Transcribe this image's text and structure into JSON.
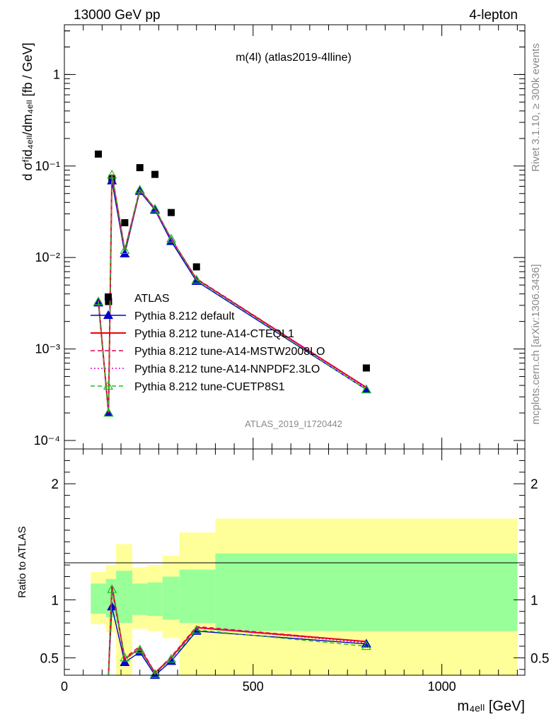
{
  "header": {
    "left": "13000 GeV pp",
    "right": "4-lepton"
  },
  "side_labels": {
    "rivet": "Rivet 3.1.10, ≥ 300k events",
    "mcplots": "mcplots.cern.ch [arXiv:1306.3436]"
  },
  "chart_data": [
    {
      "type": "line",
      "title": "m(4l) (atlas2019-4lline)",
      "watermark": "ATLAS_2019_I1720442",
      "ylabel": "d σᶠid₄ₑₗₗ/dm₄ₑₗₗ [fb / GeV]",
      "yscale": "log",
      "ylim": [
        0.0001,
        3.5
      ],
      "xlim": [
        0,
        1220
      ],
      "y_tick_labels": [
        "10⁻⁴",
        "10⁻³",
        "10⁻²",
        "10⁻¹",
        "1"
      ],
      "legend_position": "lower-left",
      "series": [
        {
          "name": "ATLAS",
          "marker": "square",
          "color": "#000000",
          "x": [
            90,
            117,
            126,
            160,
            200,
            240,
            283,
            350,
            800
          ],
          "y": [
            0.135,
            0.0033,
            0.073,
            0.024,
            0.096,
            0.081,
            0.031,
            0.0079,
            0.00062
          ]
        },
        {
          "name": "Pythia 8.212 default",
          "color": "#0000cc",
          "marker": "triangle-filled",
          "dash": "solid",
          "x": [
            90,
            117,
            126,
            160,
            200,
            240,
            283,
            350,
            800
          ],
          "y": [
            0.0032,
            0.0002,
            0.069,
            0.011,
            0.053,
            0.033,
            0.015,
            0.0055,
            0.00036
          ]
        },
        {
          "name": "Pythia 8.212 tune-A14-CTEQL1",
          "color": "#ee0000",
          "marker": "none",
          "dash": "solid",
          "x": [
            90,
            117,
            126,
            160,
            200,
            240,
            283,
            350,
            800
          ],
          "y": [
            0.0034,
            0.0002,
            0.081,
            0.012,
            0.055,
            0.034,
            0.016,
            0.0058,
            0.00038
          ]
        },
        {
          "name": "Pythia 8.212 tune-A14-MSTW2008LO",
          "color": "#dd0055",
          "marker": "none",
          "dash": "dashed",
          "x": [
            90,
            117,
            126,
            160,
            200,
            240,
            283,
            350,
            800
          ],
          "y": [
            0.0034,
            0.0002,
            0.082,
            0.012,
            0.056,
            0.034,
            0.016,
            0.0059,
            0.00038
          ]
        },
        {
          "name": "Pythia 8.212 tune-A14-NNPDF2.3LO",
          "color": "#dd00dd",
          "marker": "none",
          "dash": "dotted",
          "x": [
            90,
            117,
            126,
            160,
            200,
            240,
            283,
            350,
            800
          ],
          "y": [
            0.0033,
            0.0002,
            0.079,
            0.012,
            0.055,
            0.034,
            0.016,
            0.0058,
            0.00037
          ]
        },
        {
          "name": "Pythia 8.212 tune-CUETP8S1",
          "color": "#22bb22",
          "marker": "triangle-open",
          "dash": "dashed",
          "x": [
            90,
            117,
            126,
            160,
            200,
            240,
            283,
            350,
            800
          ],
          "y": [
            0.0033,
            0.0002,
            0.08,
            0.012,
            0.055,
            0.034,
            0.016,
            0.0057,
            0.00036
          ]
        }
      ]
    },
    {
      "type": "line",
      "ylabel": "Ratio to ATLAS",
      "xlabel": "m₄ₑₗₗ [GeV]",
      "xlim": [
        0,
        1220
      ],
      "ylim": [
        0.35,
        2.3
      ],
      "x_tick_labels": [
        "0",
        "500",
        "1000"
      ],
      "y_tick_labels": [
        "0.5",
        "1",
        "2"
      ],
      "reference_line": 1,
      "bands": [
        {
          "x0": 70,
          "x1": 110,
          "inner": [
            0.88,
            1.14
          ],
          "outer": [
            0.79,
            1.24
          ]
        },
        {
          "x0": 110,
          "x1": 137,
          "inner": [
            0.85,
            1.18
          ],
          "outer": [
            0.72,
            1.3
          ]
        },
        {
          "x0": 137,
          "x1": 180,
          "inner": [
            0.8,
            1.25
          ],
          "outer": [
            0.35,
            1.48
          ]
        },
        {
          "x0": 180,
          "x1": 220,
          "inner": [
            0.87,
            1.14
          ],
          "outer": [
            0.75,
            1.28
          ]
        },
        {
          "x0": 220,
          "x1": 260,
          "inner": [
            0.86,
            1.15
          ],
          "outer": [
            0.73,
            1.3
          ]
        },
        {
          "x0": 260,
          "x1": 305,
          "inner": [
            0.83,
            1.2
          ],
          "outer": [
            0.67,
            1.38
          ]
        },
        {
          "x0": 305,
          "x1": 400,
          "inner": [
            0.8,
            1.26
          ],
          "outer": [
            0.35,
            1.58
          ]
        },
        {
          "x0": 400,
          "x1": 1200,
          "inner": [
            0.73,
            1.4
          ],
          "outer": [
            0.35,
            1.7
          ]
        }
      ],
      "series": [
        {
          "name": "Pythia 8.212 default",
          "color": "#0000cc",
          "marker": "triangle-filled",
          "dash": "solid",
          "x": [
            117,
            126,
            160,
            200,
            240,
            283,
            350,
            800
          ],
          "y": [
            0.06,
            0.94,
            0.46,
            0.55,
            0.35,
            0.47,
            0.73,
            0.62
          ]
        },
        {
          "name": "Pythia 8.212 tune-A14-CTEQL1",
          "color": "#ee0000",
          "marker": "none",
          "dash": "solid",
          "x": [
            117,
            126,
            160,
            200,
            240,
            283,
            350,
            800
          ],
          "y": [
            0.06,
            1.11,
            0.49,
            0.58,
            0.37,
            0.5,
            0.76,
            0.64
          ]
        },
        {
          "name": "Pythia 8.212 tune-A14-MSTW2008LO",
          "color": "#dd0055",
          "marker": "none",
          "dash": "dashed",
          "x": [
            117,
            126,
            160,
            200,
            240,
            283,
            350,
            800
          ],
          "y": [
            0.06,
            1.13,
            0.5,
            0.6,
            0.37,
            0.51,
            0.77,
            0.64
          ]
        },
        {
          "name": "Pythia 8.212 tune-A14-NNPDF2.3LO",
          "color": "#dd00dd",
          "marker": "none",
          "dash": "dotted",
          "x": [
            117,
            126,
            160,
            200,
            240,
            283,
            350,
            800
          ],
          "y": [
            0.06,
            1.08,
            0.49,
            0.59,
            0.36,
            0.5,
            0.76,
            0.63
          ]
        },
        {
          "name": "Pythia 8.212 tune-CUETP8S1",
          "color": "#22bb22",
          "marker": "triangle-open",
          "dash": "dashed",
          "x": [
            117,
            126,
            160,
            200,
            240,
            283,
            350,
            800
          ],
          "y": [
            0.06,
            1.09,
            0.5,
            0.57,
            0.36,
            0.49,
            0.74,
            0.6
          ]
        }
      ]
    }
  ]
}
